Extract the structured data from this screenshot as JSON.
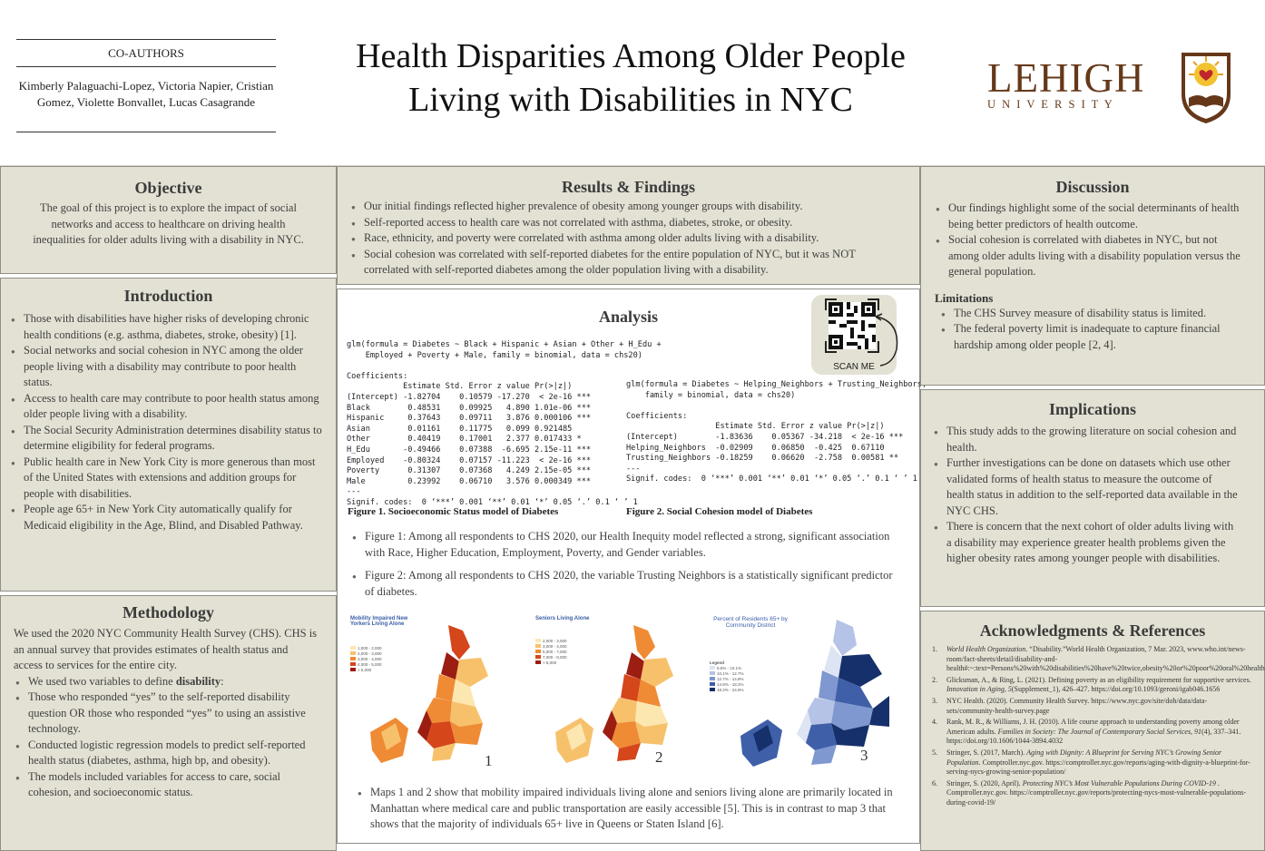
{
  "header": {
    "coauthors_label": "CO-AUTHORS",
    "coauthors_names": "Kimberly Palaguachi-Lopez, Victoria Napier, Cristian Gomez, Violette Bonvallet, Lucas Casagrande",
    "title_line1": "Health Disparities Among Older People",
    "title_line2": "Living with Disabilities in NYC",
    "logo_main": "LEHIGH",
    "logo_sub": "U N I V E R S I T Y"
  },
  "objective": {
    "title": "Objective",
    "text": "The goal of this project is to explore the impact of social networks and access to healthcare on driving health inequalities for older adults living with a disability in NYC."
  },
  "introduction": {
    "title": "Introduction",
    "items": [
      "Those with disabilities have higher risks of developing chronic health conditions (e.g. asthma, diabetes, stroke, obesity) [1].",
      "Social networks and social cohesion in NYC among the older people living with a disability may contribute to poor health status.",
      "Access to health care may contribute to poor health status among older people living with a disability.",
      " The Social Security Administration determines disability status to determine eligibility for federal programs.",
      "Public health care in New York City is more generous than most of the United States with extensions and addition groups for people with disabilities.",
      "People age 65+ in New York City automatically qualify for Medicaid eligibility in the Age, Blind, and Disabled Pathway."
    ]
  },
  "methodology": {
    "title": "Methodology",
    "intro": "We used the 2020 NYC Community Health Survey (CHS). CHS is an annual survey that provides estimates of health status and access to services for the entire city.",
    "item0_prefix": "We used two variables to define ",
    "item0_bold": "disability",
    "item0_suffix": ":",
    "items": [
      "Those who responded “yes” to the self-reported disability question OR those who responded “yes” to using an assistive technology.",
      "Conducted logistic regression models to predict self-reported health status (diabetes, asthma, high bp, and obesity).",
      "The models included variables for access to care, social cohesion, and socioeconomic status."
    ]
  },
  "results": {
    "title": "Results & Findings",
    "items": [
      "Our initial findings reflected higher prevalence of obesity among younger groups with disability.",
      "Self-reported access to health care was not correlated with asthma, diabetes, stroke, or obesity.",
      "Race, ethnicity, and poverty were correlated with asthma among older adults  living with a disability.",
      "Social cohesion was correlated with self-reported diabetes for the entire population of NYC, but it was NOT correlated with self-reported diabetes among the older population living with a disability."
    ]
  },
  "analysis": {
    "title": "Analysis",
    "qr_label": "SCAN ME",
    "code1": "glm(formula = Diabetes ~ Black + Hispanic + Asian + Other + H_Edu +\n    Employed + Poverty + Male, family = binomial, data = chs20)\n\nCoefficients:\n            Estimate Std. Error z value Pr(>|z|)\n(Intercept) -1.82704    0.10579 -17.270  < 2e-16 ***\nBlack        0.48531    0.09925   4.890 1.01e-06 ***\nHispanic     0.37643    0.09711   3.876 0.000106 ***\nAsian        0.01161    0.11775   0.099 0.921485\nOther        0.40419    0.17001   2.377 0.017433 *\nH_Edu       -0.49466    0.07388  -6.695 2.15e-11 ***\nEmployed    -0.80324    0.07157 -11.223  < 2e-16 ***\nPoverty      0.31307    0.07368   4.249 2.15e-05 ***\nMale         0.23992    0.06710   3.576 0.000349 ***\n---\nSignif. codes:  0 ‘***’ 0.001 ‘**’ 0.01 ‘*’ 0.05 ‘.’ 0.1 ‘ ’ 1",
    "code2": "glm(formula = Diabetes ~ Helping_Neighbors + Trusting_Neighbors,\n    family = binomial, data = chs20)\n\nCoefficients:\n                   Estimate Std. Error z value Pr(>|z|)\n(Intercept)        -1.83636    0.05367 -34.218  < 2e-16 ***\nHelping_Neighbors  -0.02909    0.06850  -0.425  0.67110\nTrusting_Neighbors -0.18259    0.06620  -2.758  0.00581 **\n---\nSignif. codes:  0 ‘***’ 0.001 ‘**’ 0.01 ‘*’ 0.05 ‘.’ 0.1 ‘ ’ 1",
    "caption1": "Figure 1. Socioeconomic Status model of Diabetes",
    "caption2": "Figure 2. Social Cohesion model of Diabetes",
    "fig_items": [
      "Figure 1: Among all respondents to CHS 2020, our Health Inequity model reflected a strong, significant association with Race, Higher Education, Employment, Poverty, and Gender variables.",
      "Figure 2: Among all respondents to CHS 2020, the variable Trusting Neighbors is a statistically significant predictor of diabetes."
    ],
    "map1_title": "Mobility Impaired New Yorkers Living Alone",
    "map2_title": "Seniors Living Alone",
    "map3_title": "Percent of Residents 65+ by Community District",
    "map_nums": [
      "1",
      "2",
      "3"
    ],
    "maps_text": "Maps 1 and 2 show that mobility impaired individuals living alone and seniors living alone are primarily located in Manhattan where medical care and public transportation are easily accessible [5]. This is in contrast to map 3 that shows that the majority of individuals 65+ live in Queens or Staten Island [6]."
  },
  "discussion": {
    "title": "Discussion",
    "items": [
      "Our findings highlight some of the social determinants of health being better predictors of health outcome.",
      "Social cohesion is correlated with diabetes in NYC, but not among older adults living with a disability population versus the general population."
    ],
    "limitations_title": "Limitations",
    "limitations": [
      "The CHS Survey measure of disability status is limited.",
      "The federal poverty limit is inadequate to capture financial hardship among older people [2, 4]."
    ]
  },
  "implications": {
    "title": "Implications",
    "items": [
      "This study adds to the growing literature on social cohesion and health.",
      "Further investigations can be done on datasets which use other validated forms of health status to measure the outcome of health status in addition to the self-reported data available in the NYC CHS.",
      "There is concern that the next cohort of older adults living with a disability  may experience greater health problems given the higher obesity rates among younger people with disabilities."
    ]
  },
  "references": {
    "title": "Acknowledgments & References",
    "items": [
      {
        "n": "1.",
        "a": "",
        "i": "World Health Organization",
        "b": ". “Disability.”World Health Organization, 7 Mar. 2023, www.who.int/news-room/fact-sheets/detail/disability-and-health#:~:text=Persons%20with%20disabilities%20have%20twice,obesity%20or%20poor%20oral%20health."
      },
      {
        "n": "2.",
        "a": "Glicksman, A., & Ring, L. (2021). Defining poverty as an eligibility requirement for supportive services. ",
        "i": "Innovation in Aging, 5",
        "b": "(Supplement_1), 426–427. https://doi.org/10.1093/geroni/igab046.1656"
      },
      {
        "n": "3.",
        "a": "NYC Health. (2020). Community Health Survey. https://www.nyc.gov/site/doh/data/data-sets/community-health-survey.page",
        "i": "",
        "b": ""
      },
      {
        "n": "4.",
        "a": "Rank, M. R., & Williams, J. H. (2010). A life course approach to understanding poverty among older American adults. ",
        "i": "Families in Society: The Journal of Contemporary Social Services, 91",
        "b": "(4), 337–341. https://doi.org/10.1606/1044-3894.4032"
      },
      {
        "n": "5.",
        "a": "Stringer, S. (2017, March). ",
        "i": "Aging with Dignity: A Blueprint for Serving NYC’s Growing Senior Population",
        "b": ". Comptroller.nyc.gov. https://comptroller.nyc.gov/reports/aging-with-dignity-a-blueprint-for-serving-nycs-growing-senior-population/"
      },
      {
        "n": "6.",
        "a": "Stringer, S. (2020, April). ",
        "i": "Protecting NYC’s Most Vulnerable Populations During COVID-19",
        "b": " . Comptroller.nyc.gov. https://comptroller.nyc.gov/reports/protecting-nycs-most-vulnerable-populations-during-covid-19/"
      }
    ]
  },
  "colors": {
    "panel_bg": "#e3e1d3",
    "lehigh_brown": "#653819",
    "map_orange": "#e8802f",
    "map_blue": "#2c4a8c"
  }
}
